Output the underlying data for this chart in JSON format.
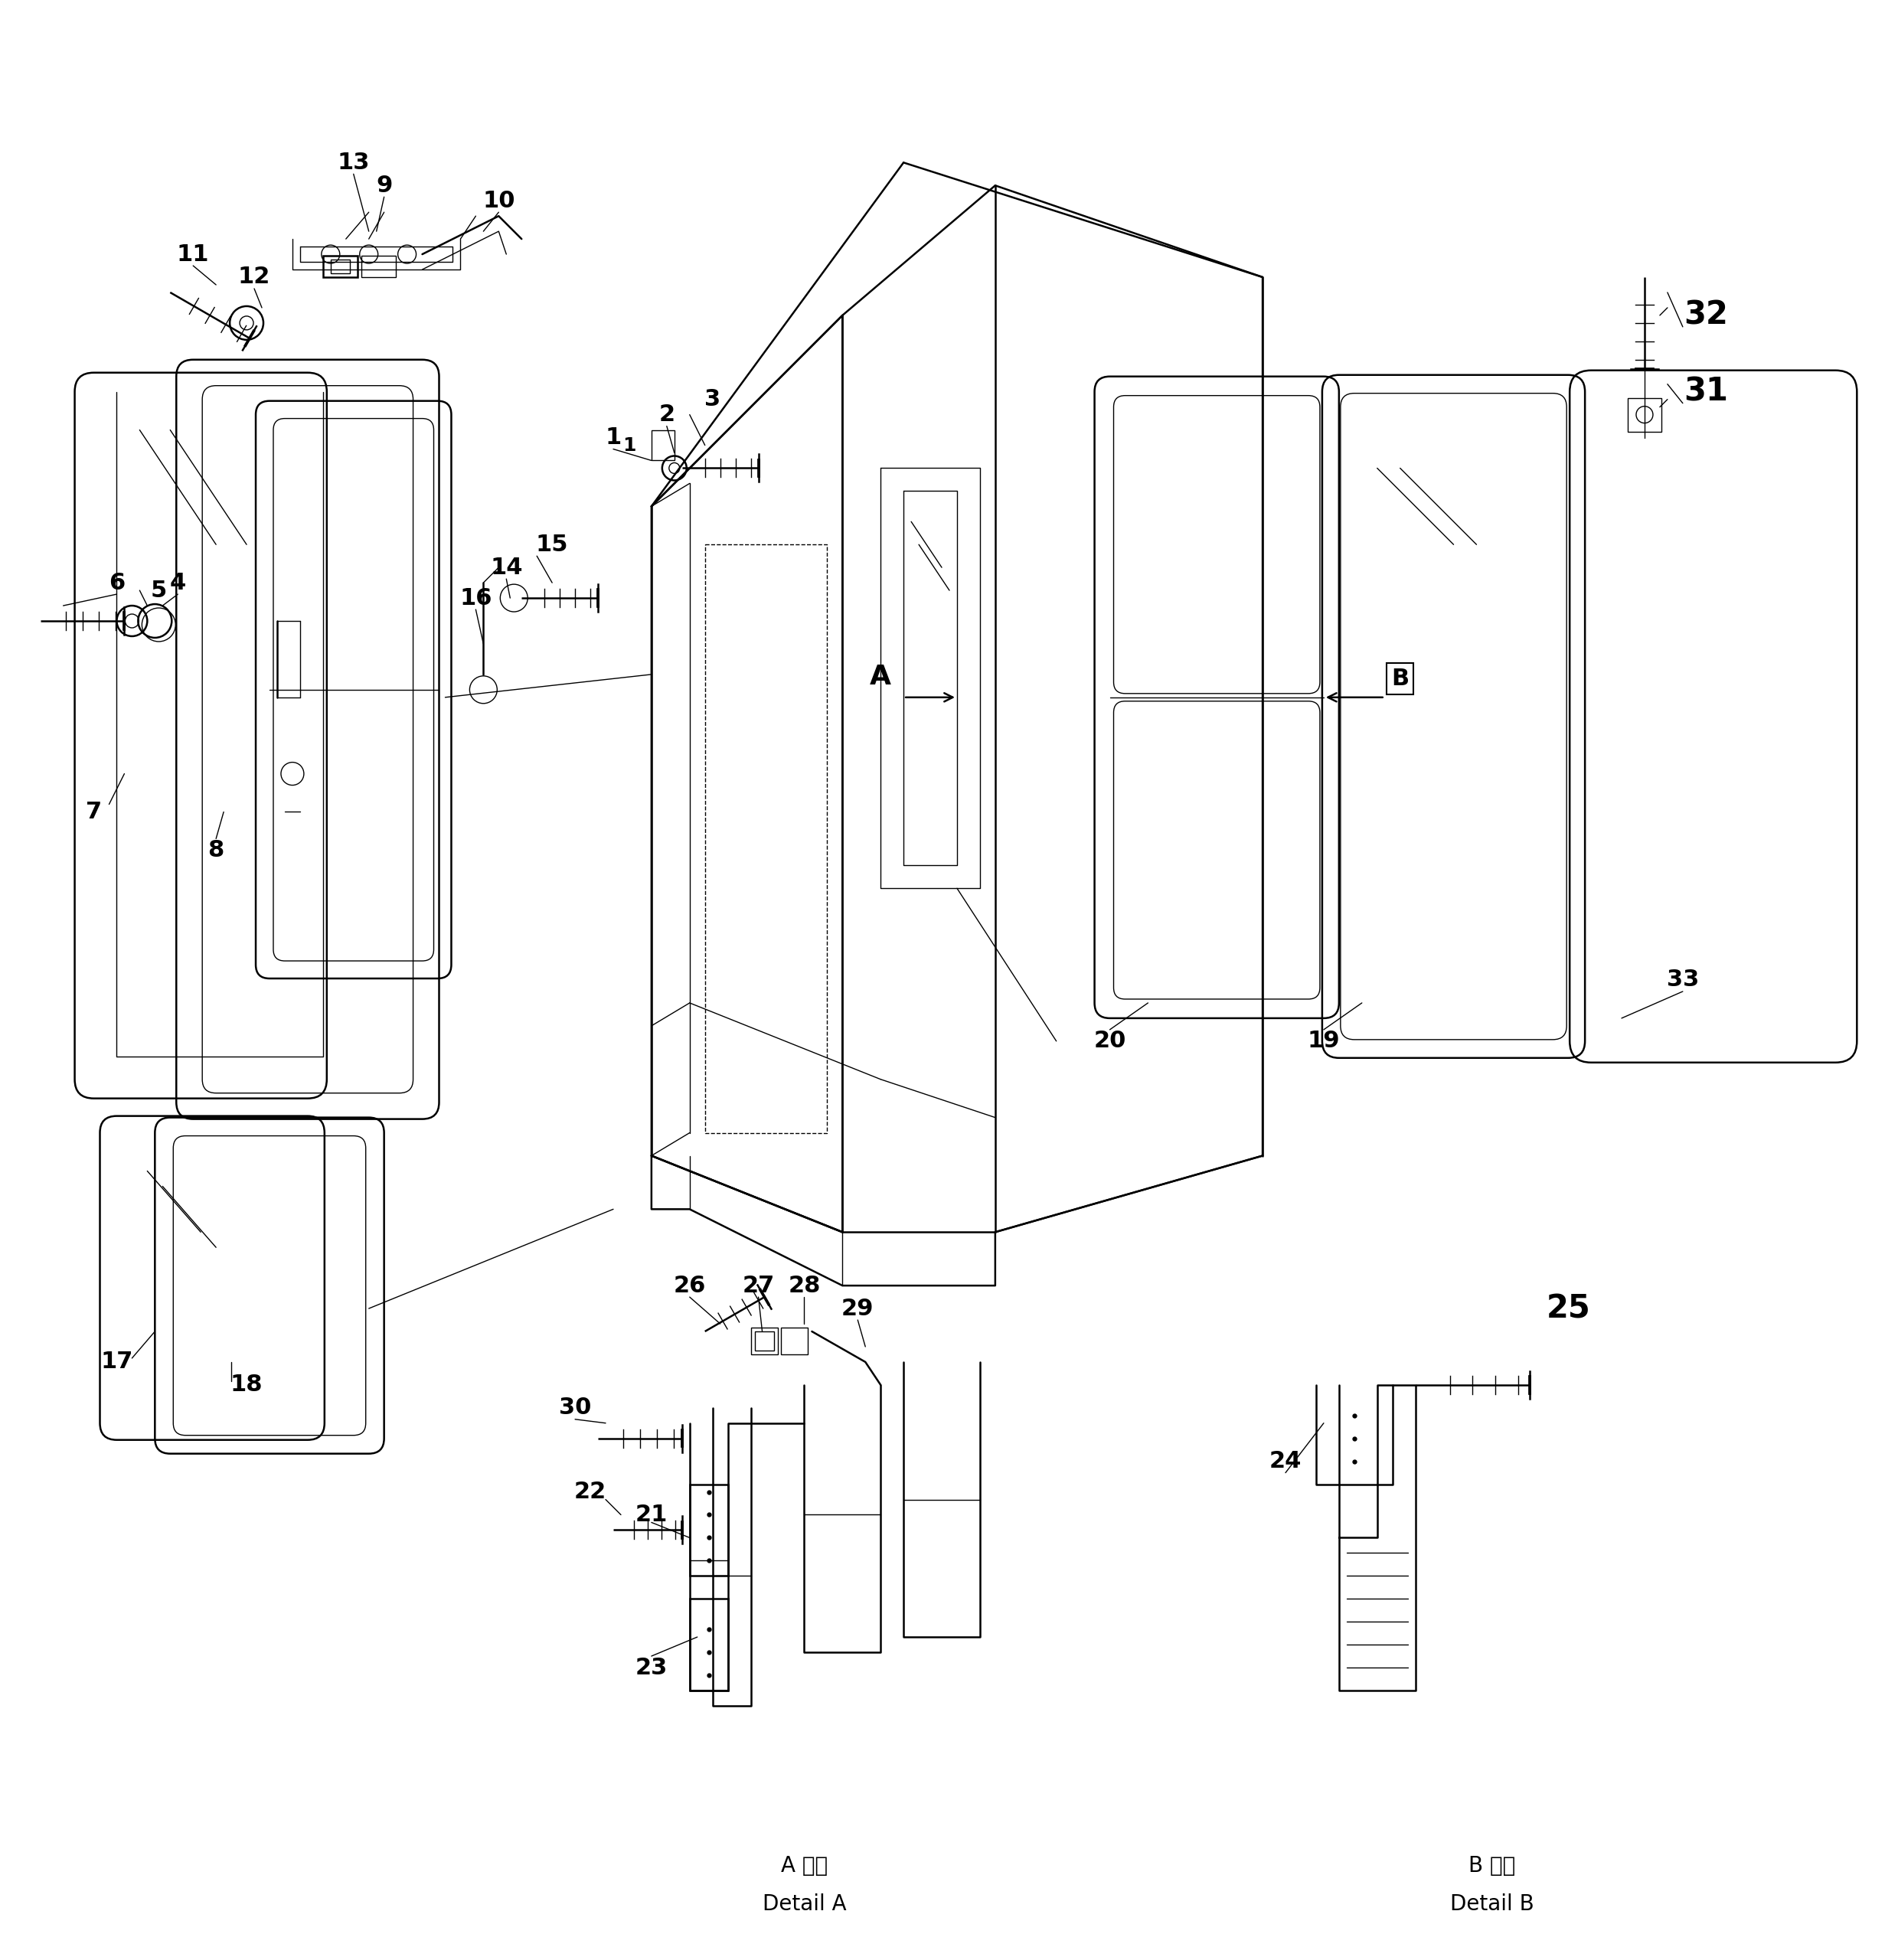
{
  "bg_color": "#ffffff",
  "line_color": "#000000",
  "fig_width": 24.79,
  "fig_height": 25.6,
  "detail_a_text1": "A 詳細",
  "detail_a_text2": "Detail A",
  "detail_b_text1": "B 詳細",
  "detail_b_text2": "Detail B"
}
